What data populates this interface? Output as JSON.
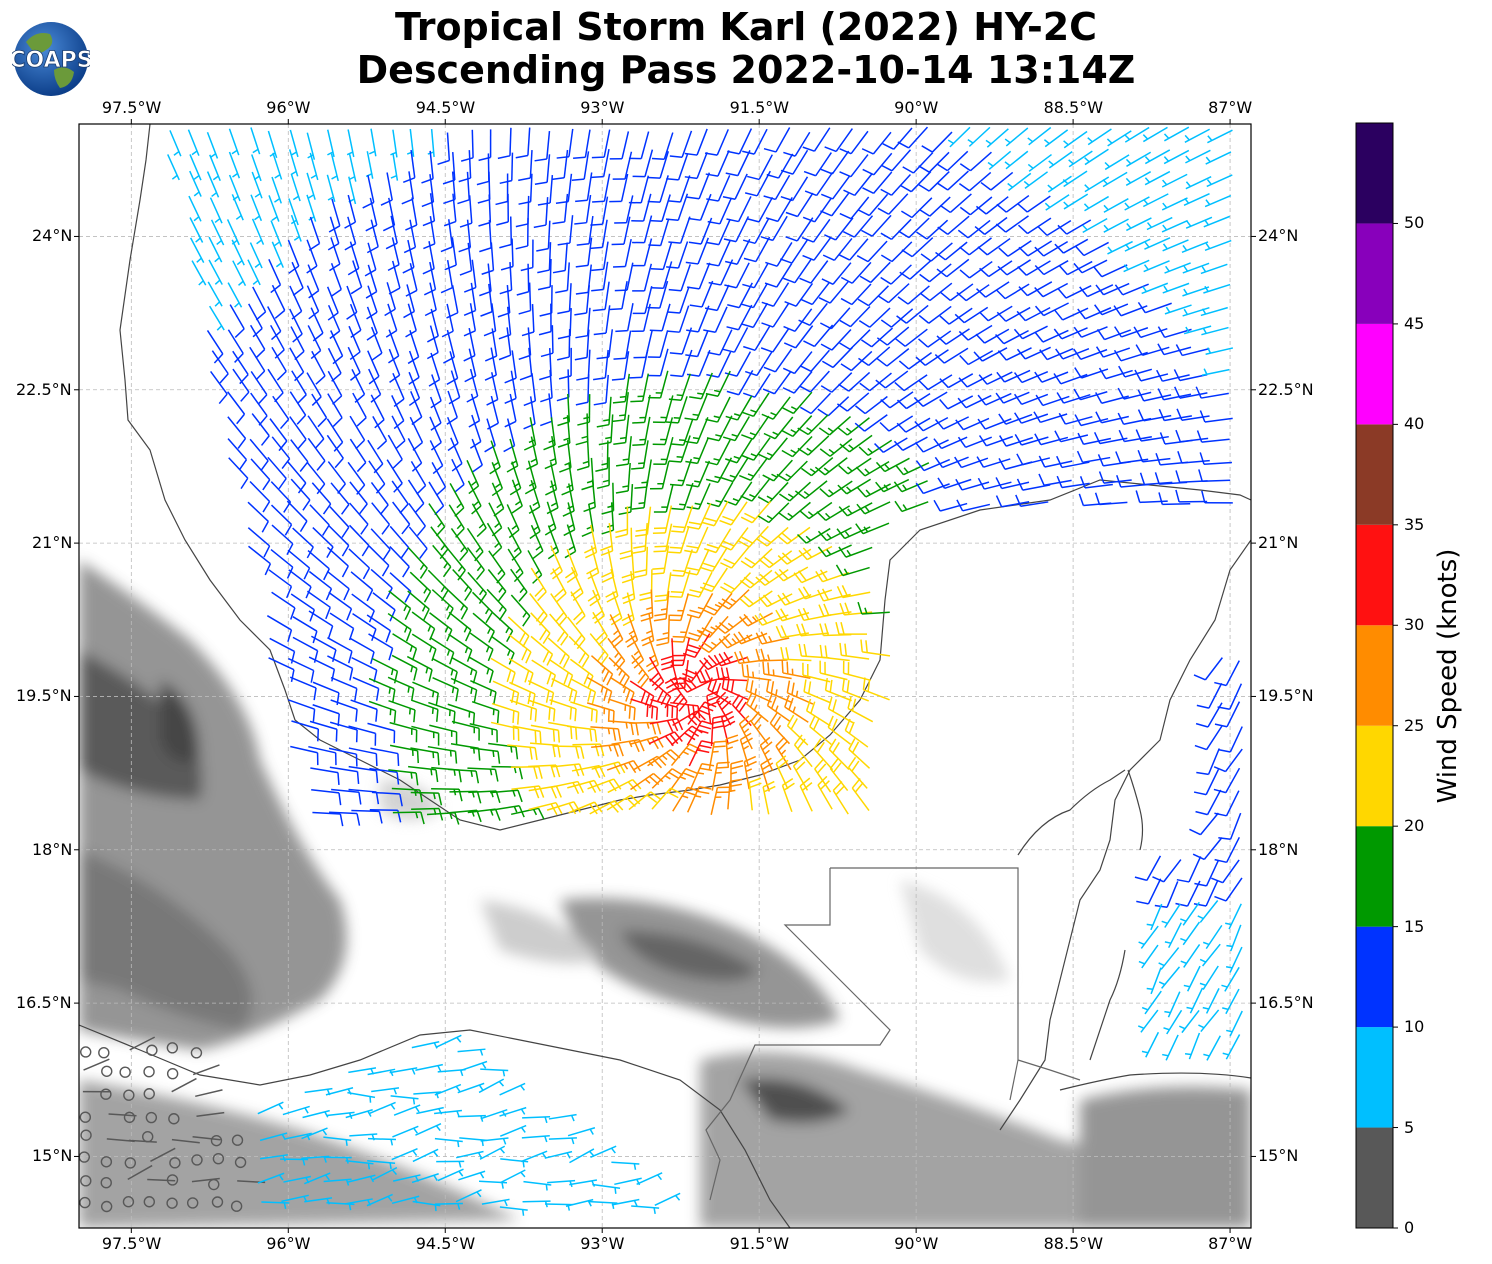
{
  "header": {
    "title_line1": "Tropical Storm Karl (2022) HY-2C",
    "title_line2": "Descending Pass 2022-10-14 13:14Z",
    "logo_text": "COAPS"
  },
  "map": {
    "lon_range": [
      -98,
      -86.8
    ],
    "lat_range": [
      14.3,
      25.1
    ],
    "lon_ticks": [
      "97.5°W",
      "96°W",
      "94.5°W",
      "93°W",
      "91.5°W",
      "90°W",
      "88.5°W",
      "87°W"
    ],
    "lon_values": [
      -97.5,
      -96,
      -94.5,
      -93,
      -91.5,
      -90,
      -88.5,
      -87
    ],
    "lat_ticks": [
      "15°N",
      "16.5°N",
      "18°N",
      "19.5°N",
      "21°N",
      "22.5°N",
      "24°N"
    ],
    "lat_values": [
      15,
      16.5,
      18,
      19.5,
      21,
      22.5,
      24
    ],
    "storm_center": {
      "lon": -92.1,
      "lat": 19.5
    },
    "gridlines": true,
    "colors": {
      "coastline": "#444444",
      "grid": "#bbbbbb",
      "land": "#ffffff",
      "terrain": "#7d7d7d"
    }
  },
  "colorbar": {
    "title": "Wind Speed (knots)",
    "ticks": [
      "0",
      "5",
      "10",
      "15",
      "20",
      "25",
      "30",
      "35",
      "40",
      "45",
      "50"
    ],
    "bins": [
      {
        "from": 0,
        "to": 5,
        "color": "#585858"
      },
      {
        "from": 5,
        "to": 10,
        "color": "#00bfff"
      },
      {
        "from": 10,
        "to": 15,
        "color": "#0033ff"
      },
      {
        "from": 15,
        "to": 20,
        "color": "#009900"
      },
      {
        "from": 20,
        "to": 25,
        "color": "#ffd700"
      },
      {
        "from": 25,
        "to": 30,
        "color": "#ff8c00"
      },
      {
        "from": 30,
        "to": 35,
        "color": "#ff1111"
      },
      {
        "from": 35,
        "to": 40,
        "color": "#8b3a26"
      },
      {
        "from": 40,
        "to": 45,
        "color": "#ff00ff"
      },
      {
        "from": 45,
        "to": 50,
        "color": "#8800bb"
      },
      {
        "from": 50,
        "to": 55,
        "color": "#2b0060"
      }
    ]
  }
}
